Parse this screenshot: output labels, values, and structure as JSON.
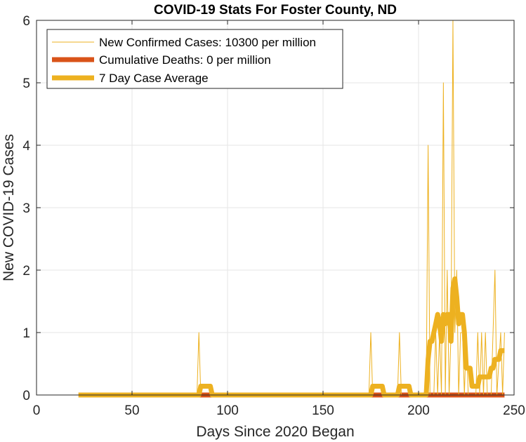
{
  "chart_data": {
    "type": "line",
    "title": "COVID-19 Stats For Foster County, ND",
    "xlabel": "Days Since 2020 Began",
    "ylabel": "New COVID-19 Cases",
    "xlim": [
      0,
      250
    ],
    "ylim": [
      0,
      6
    ],
    "x_ticks": [
      0,
      50,
      100,
      150,
      200,
      250
    ],
    "y_ticks": [
      0,
      1,
      2,
      3,
      4,
      5,
      6
    ],
    "grid": true,
    "legend_position": "top-left",
    "colors": {
      "new_cases": "#EDB120",
      "deaths": "#D95319",
      "average": "#EDB120",
      "grid": "#e6e6e6",
      "axis": "#262626"
    },
    "series": [
      {
        "name": "New Confirmed Cases: 10300 per million",
        "points": [
          [
            22,
            0
          ],
          [
            84,
            0
          ],
          [
            85,
            1
          ],
          [
            86,
            0
          ],
          [
            174,
            0
          ],
          [
            175,
            1
          ],
          [
            176,
            0
          ],
          [
            189,
            0
          ],
          [
            190,
            1
          ],
          [
            191,
            0
          ],
          [
            204,
            0
          ],
          [
            205,
            4
          ],
          [
            206,
            0
          ],
          [
            208,
            0
          ],
          [
            209,
            1
          ],
          [
            210,
            0
          ],
          [
            211,
            1
          ],
          [
            212,
            0
          ],
          [
            213,
            5
          ],
          [
            214,
            0
          ],
          [
            215,
            2
          ],
          [
            216,
            0
          ],
          [
            217,
            1
          ],
          [
            218,
            6
          ],
          [
            219,
            1
          ],
          [
            220,
            2
          ],
          [
            221,
            0
          ],
          [
            222,
            1
          ],
          [
            223,
            1
          ],
          [
            224,
            0
          ],
          [
            225,
            1
          ],
          [
            226,
            0
          ],
          [
            230,
            0
          ],
          [
            231,
            1
          ],
          [
            232,
            0
          ],
          [
            233,
            1
          ],
          [
            234,
            0
          ],
          [
            235,
            1
          ],
          [
            236,
            0
          ],
          [
            238,
            0
          ],
          [
            239,
            1
          ],
          [
            240,
            2
          ],
          [
            241,
            0
          ],
          [
            243,
            1
          ],
          [
            244,
            0
          ],
          [
            245,
            1
          ]
        ]
      },
      {
        "name": "Cumulative Deaths: 0 per million",
        "points": [
          [
            22,
            0
          ],
          [
            245,
            0
          ]
        ]
      },
      {
        "name": "7 Day Case Average",
        "points": [
          [
            22,
            0
          ],
          [
            85,
            0
          ],
          [
            86,
            0.14
          ],
          [
            91,
            0.14
          ],
          [
            92,
            0
          ],
          [
            175,
            0
          ],
          [
            176,
            0.14
          ],
          [
            181,
            0.14
          ],
          [
            182,
            0
          ],
          [
            189,
            0
          ],
          [
            190,
            0.14
          ],
          [
            195,
            0.14
          ],
          [
            196,
            0
          ],
          [
            204,
            0
          ],
          [
            205,
            0.57
          ],
          [
            206,
            0.86
          ],
          [
            207,
            0.86
          ],
          [
            208,
            1
          ],
          [
            209,
            1.14
          ],
          [
            210,
            1.29
          ],
          [
            211,
            1.14
          ],
          [
            212,
            0.86
          ],
          [
            213,
            1.29
          ],
          [
            214,
            1.14
          ],
          [
            215,
            1.29
          ],
          [
            216,
            1.29
          ],
          [
            217,
            0.86
          ],
          [
            218,
            1.71
          ],
          [
            219,
            1.86
          ],
          [
            220,
            1.57
          ],
          [
            221,
            1.14
          ],
          [
            222,
            1.29
          ],
          [
            223,
            1.29
          ],
          [
            224,
            1
          ],
          [
            225,
            0.43
          ],
          [
            226,
            0.43
          ],
          [
            227,
            0.43
          ],
          [
            228,
            0.14
          ],
          [
            229,
            0.14
          ],
          [
            230,
            0.14
          ],
          [
            231,
            0.14
          ],
          [
            232,
            0.29
          ],
          [
            233,
            0.29
          ],
          [
            234,
            0.29
          ],
          [
            235,
            0.29
          ],
          [
            236,
            0.29
          ],
          [
            237,
            0.29
          ],
          [
            238,
            0.43
          ],
          [
            239,
            0.43
          ],
          [
            240,
            0.57
          ],
          [
            241,
            0.57
          ],
          [
            242,
            0.57
          ],
          [
            243,
            0.71
          ],
          [
            244,
            0.71
          ],
          [
            245,
            0.71
          ]
        ]
      }
    ]
  }
}
